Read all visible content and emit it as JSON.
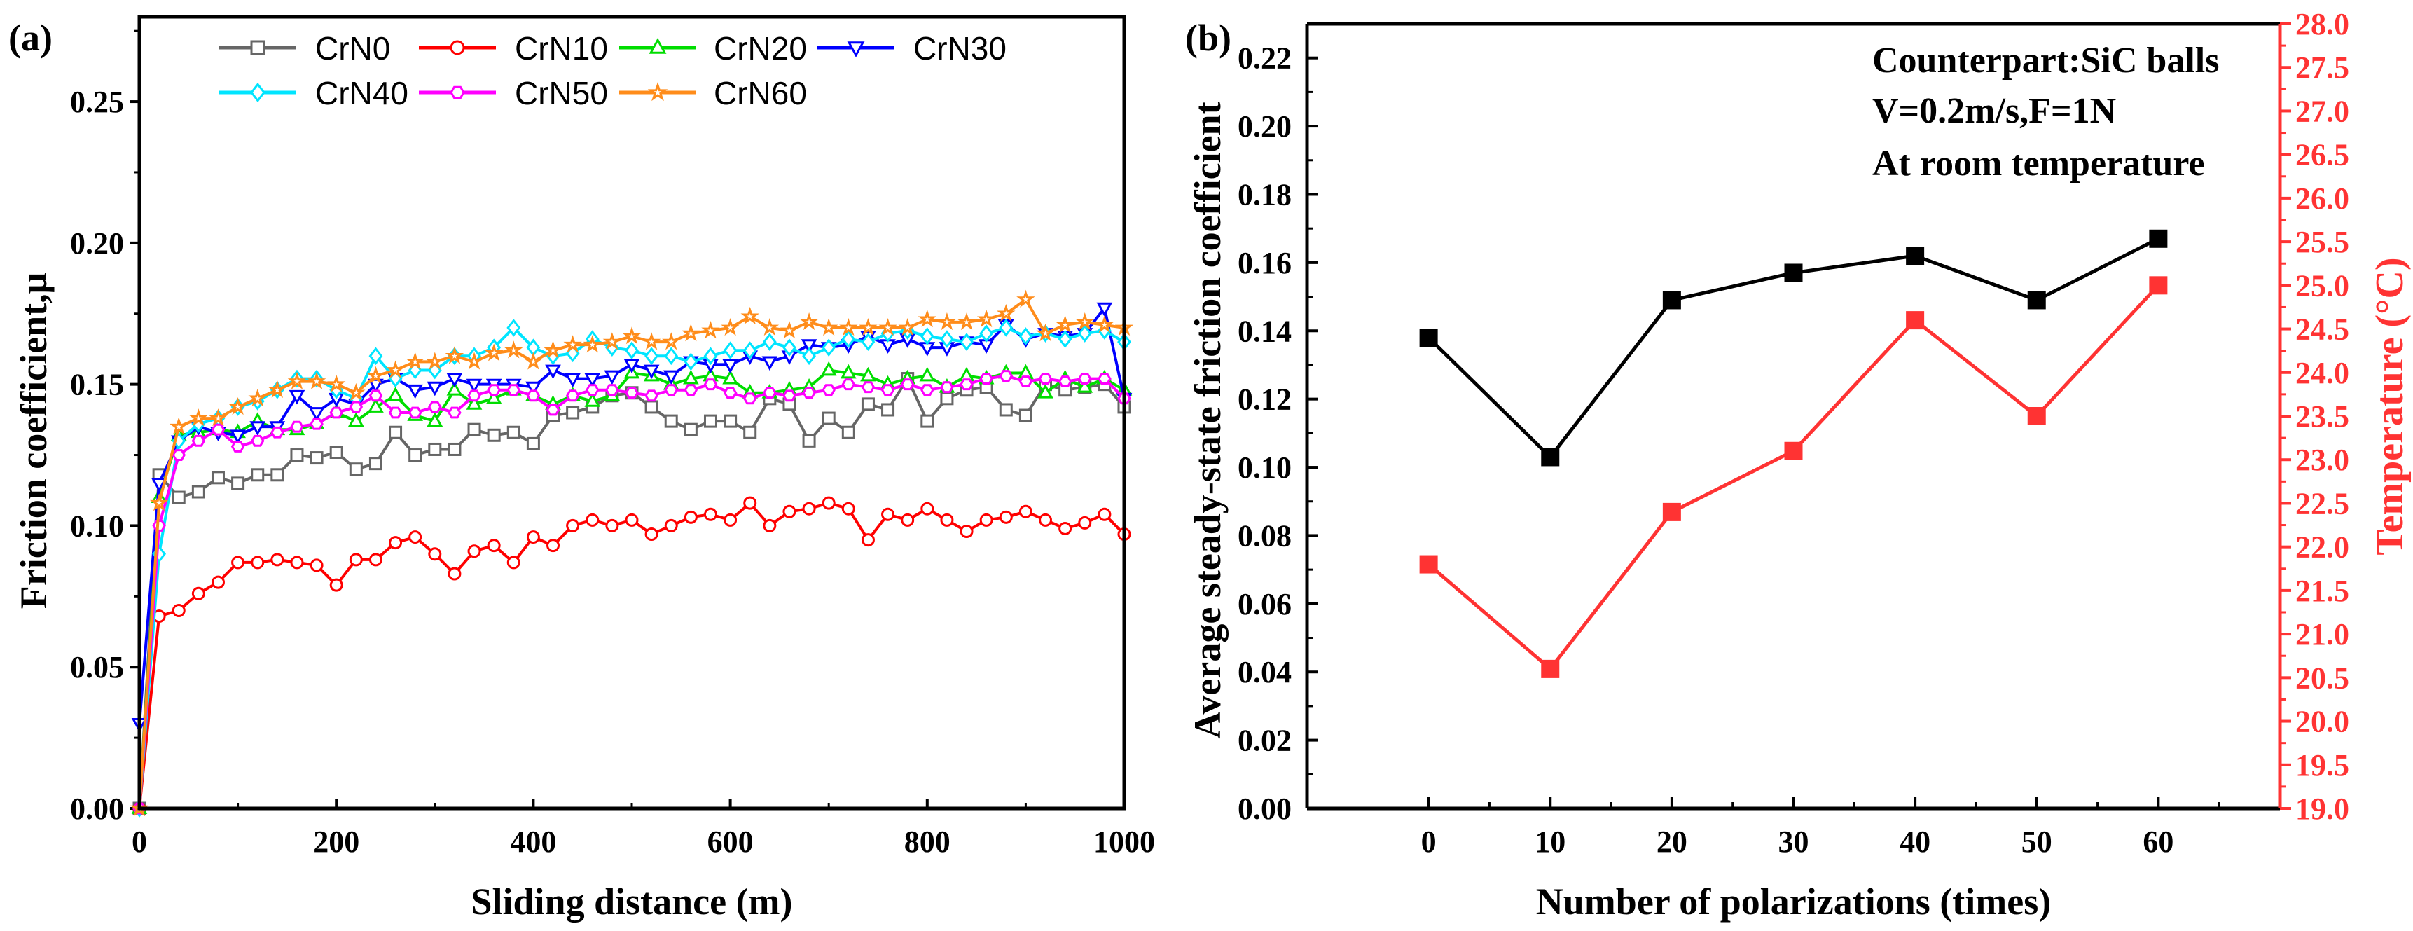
{
  "chart_data": [
    {
      "panel_label": "(a)",
      "type": "line",
      "title": "",
      "xlabel": "Sliding distance (m)",
      "ylabel": "Friction coefficient,μ",
      "xlim": [
        0,
        1000
      ],
      "ylim": [
        0,
        0.28
      ],
      "xticks": [
        "0",
        "200",
        "400",
        "600",
        "800",
        "1000"
      ],
      "yticks": [
        "0.00",
        "0.05",
        "0.10",
        "0.15",
        "0.20",
        "0.25"
      ],
      "legend_placement": "top",
      "x": [
        0,
        20,
        40,
        60,
        80,
        100,
        120,
        140,
        160,
        180,
        200,
        220,
        240,
        260,
        280,
        300,
        320,
        340,
        360,
        380,
        400,
        420,
        440,
        460,
        480,
        500,
        520,
        540,
        560,
        580,
        600,
        620,
        640,
        660,
        680,
        700,
        720,
        740,
        760,
        780,
        800,
        820,
        840,
        860,
        880,
        900,
        920,
        940,
        960,
        980,
        1000
      ],
      "series": [
        {
          "name": "CrN0",
          "color": "#666666",
          "marker": "square",
          "values": [
            0,
            0.118,
            0.11,
            0.112,
            0.117,
            0.115,
            0.118,
            0.118,
            0.125,
            0.124,
            0.126,
            0.12,
            0.122,
            0.133,
            0.125,
            0.127,
            0.127,
            0.134,
            0.132,
            0.133,
            0.129,
            0.139,
            0.14,
            0.142,
            0.146,
            0.147,
            0.142,
            0.137,
            0.134,
            0.137,
            0.137,
            0.133,
            0.145,
            0.143,
            0.13,
            0.138,
            0.133,
            0.143,
            0.141,
            0.152,
            0.137,
            0.145,
            0.148,
            0.149,
            0.141,
            0.139,
            0.15,
            0.148,
            0.149,
            0.15,
            0.142
          ]
        },
        {
          "name": "CrN10",
          "color": "#ff0000",
          "marker": "circle",
          "values": [
            0,
            0.068,
            0.07,
            0.076,
            0.08,
            0.087,
            0.087,
            0.088,
            0.087,
            0.086,
            0.079,
            0.088,
            0.088,
            0.094,
            0.096,
            0.09,
            0.083,
            0.091,
            0.093,
            0.087,
            0.096,
            0.093,
            0.1,
            0.102,
            0.1,
            0.102,
            0.097,
            0.1,
            0.103,
            0.104,
            0.102,
            0.108,
            0.1,
            0.105,
            0.106,
            0.108,
            0.106,
            0.095,
            0.104,
            0.102,
            0.106,
            0.102,
            0.098,
            0.102,
            0.103,
            0.105,
            0.102,
            0.099,
            0.101,
            0.104,
            0.097
          ]
        },
        {
          "name": "CrN20",
          "color": "#00dd00",
          "marker": "triangle-up",
          "values": [
            0,
            0.11,
            0.132,
            0.133,
            0.134,
            0.133,
            0.137,
            0.134,
            0.134,
            0.136,
            0.14,
            0.137,
            0.142,
            0.146,
            0.139,
            0.137,
            0.148,
            0.143,
            0.145,
            0.148,
            0.146,
            0.143,
            0.146,
            0.144,
            0.146,
            0.154,
            0.153,
            0.15,
            0.152,
            0.153,
            0.152,
            0.147,
            0.147,
            0.148,
            0.149,
            0.155,
            0.154,
            0.153,
            0.15,
            0.152,
            0.153,
            0.149,
            0.153,
            0.152,
            0.154,
            0.154,
            0.147,
            0.152,
            0.149,
            0.152,
            0.148
          ]
        },
        {
          "name": "CrN30",
          "color": "#0000ff",
          "marker": "triangle-down",
          "values": [
            0.03,
            0.115,
            0.13,
            0.135,
            0.133,
            0.132,
            0.135,
            0.135,
            0.146,
            0.14,
            0.145,
            0.143,
            0.15,
            0.152,
            0.148,
            0.149,
            0.152,
            0.15,
            0.15,
            0.15,
            0.149,
            0.155,
            0.152,
            0.152,
            0.153,
            0.157,
            0.155,
            0.153,
            0.158,
            0.157,
            0.157,
            0.16,
            0.158,
            0.16,
            0.164,
            0.163,
            0.164,
            0.167,
            0.164,
            0.166,
            0.163,
            0.163,
            0.165,
            0.164,
            0.171,
            0.166,
            0.168,
            0.167,
            0.168,
            0.177,
            0.145
          ]
        },
        {
          "name": "CrN40",
          "color": "#00e5ff",
          "marker": "diamond",
          "values": [
            0,
            0.09,
            0.13,
            0.136,
            0.138,
            0.142,
            0.144,
            0.148,
            0.152,
            0.152,
            0.148,
            0.145,
            0.16,
            0.152,
            0.155,
            0.155,
            0.16,
            0.16,
            0.163,
            0.17,
            0.163,
            0.16,
            0.161,
            0.166,
            0.163,
            0.162,
            0.16,
            0.16,
            0.158,
            0.16,
            0.162,
            0.162,
            0.165,
            0.163,
            0.16,
            0.163,
            0.166,
            0.165,
            0.168,
            0.169,
            0.167,
            0.166,
            0.165,
            0.168,
            0.17,
            0.167,
            0.168,
            0.166,
            0.168,
            0.169,
            0.165
          ]
        },
        {
          "name": "CrN50",
          "color": "#ff00ff",
          "marker": "hexagon",
          "values": [
            0,
            0.1,
            0.125,
            0.13,
            0.134,
            0.128,
            0.13,
            0.133,
            0.135,
            0.136,
            0.14,
            0.142,
            0.146,
            0.14,
            0.14,
            0.142,
            0.14,
            0.146,
            0.148,
            0.148,
            0.146,
            0.141,
            0.146,
            0.148,
            0.148,
            0.147,
            0.146,
            0.148,
            0.148,
            0.15,
            0.147,
            0.145,
            0.147,
            0.146,
            0.147,
            0.148,
            0.15,
            0.149,
            0.148,
            0.15,
            0.148,
            0.149,
            0.15,
            0.152,
            0.153,
            0.151,
            0.152,
            0.151,
            0.152,
            0.152,
            0.145
          ]
        },
        {
          "name": "CrN60",
          "color": "#ff8c1a",
          "marker": "star",
          "values": [
            0,
            0.108,
            0.135,
            0.138,
            0.138,
            0.142,
            0.145,
            0.148,
            0.151,
            0.151,
            0.15,
            0.147,
            0.153,
            0.155,
            0.158,
            0.158,
            0.16,
            0.158,
            0.161,
            0.162,
            0.158,
            0.162,
            0.164,
            0.164,
            0.165,
            0.167,
            0.165,
            0.165,
            0.168,
            0.169,
            0.17,
            0.174,
            0.17,
            0.169,
            0.172,
            0.17,
            0.17,
            0.17,
            0.17,
            0.17,
            0.173,
            0.172,
            0.172,
            0.173,
            0.175,
            0.18,
            0.168,
            0.171,
            0.172,
            0.171,
            0.17
          ]
        }
      ]
    },
    {
      "panel_label": "(b)",
      "type": "line",
      "title": "",
      "xlabel": "Number of polarizations (times)",
      "ylabel": "Average steady-state friction coefficient",
      "y2label": "Temperature (°C)",
      "xlim": [
        -10,
        70
      ],
      "ylim": [
        0,
        0.23
      ],
      "y2lim": [
        19,
        28
      ],
      "xticks": [
        "0",
        "10",
        "20",
        "30",
        "40",
        "50",
        "60"
      ],
      "yticks": [
        "0.00",
        "0.02",
        "0.04",
        "0.06",
        "0.08",
        "0.10",
        "0.12",
        "0.14",
        "0.16",
        "0.18",
        "0.20",
        "0.22"
      ],
      "y2ticks": [
        "19.0",
        "19.5",
        "20.0",
        "20.5",
        "21.0",
        "21.5",
        "22.0",
        "22.5",
        "23.0",
        "23.5",
        "24.0",
        "24.5",
        "25.0",
        "25.5",
        "26.0",
        "26.5",
        "27.0",
        "27.5",
        "28.0"
      ],
      "annotations": [
        "Counterpart:SiC balls",
        "V=0.2m/s,F=1N",
        "At room temperature"
      ],
      "x": [
        0,
        10,
        20,
        30,
        40,
        50,
        60
      ],
      "series": [
        {
          "name": "Average steady-state friction coefficient",
          "axis": "left",
          "color": "#000000",
          "marker": "square",
          "values": [
            0.138,
            0.103,
            0.149,
            0.157,
            0.162,
            0.149,
            0.167
          ]
        },
        {
          "name": "Temperature",
          "axis": "right",
          "color": "#ff3333",
          "marker": "square",
          "values": [
            21.8,
            20.6,
            22.4,
            23.1,
            24.6,
            23.5,
            25.0
          ]
        }
      ]
    }
  ]
}
